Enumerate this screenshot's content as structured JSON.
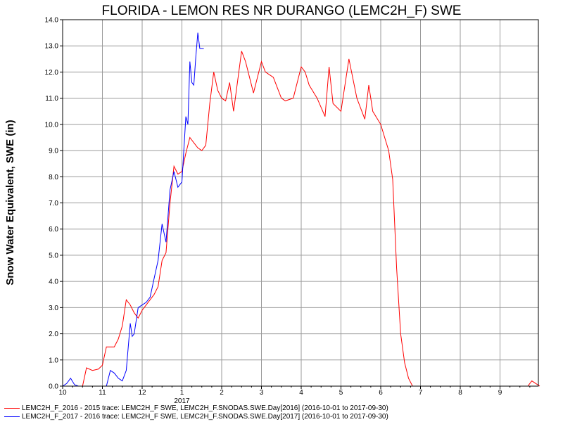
{
  "chart_data": {
    "type": "line",
    "title": "FLORIDA - LEMON RES NR DURANGO (LEMC2H_F) SWE",
    "ylabel": "Snow Water Equivalent, SWE (in)",
    "xlabel": "",
    "ylim": [
      0,
      14
    ],
    "y_ticks": [
      "0.0",
      "1.0",
      "2.0",
      "3.0",
      "4.0",
      "5.0",
      "6.0",
      "7.0",
      "8.0",
      "9.0",
      "10.0",
      "11.0",
      "12.0",
      "13.0",
      "14.0"
    ],
    "x_ticks": [
      {
        "label": "10",
        "month": 0
      },
      {
        "label": "11",
        "month": 1
      },
      {
        "label": "12",
        "month": 2
      },
      {
        "label": "1",
        "month": 3
      },
      {
        "label": "2",
        "month": 4
      },
      {
        "label": "3",
        "month": 5
      },
      {
        "label": "4",
        "month": 6
      },
      {
        "label": "5",
        "month": 7
      },
      {
        "label": "6",
        "month": 8
      },
      {
        "label": "7",
        "month": 9
      },
      {
        "label": "8",
        "month": 10
      },
      {
        "label": "9",
        "month": 11
      }
    ],
    "year_label": {
      "text": "2017",
      "month": 3
    },
    "grid": true,
    "series": [
      {
        "name": "LEMC2H_F_2016 - 2015 trace: LEMC2H_F SWE, LEMC2H_F.SNODAS.SWE.Day[2016] (2016-10-01 to 2017-09-30)",
        "color": "#ff0000",
        "x": [
          0.0,
          0.5,
          0.6,
          0.75,
          0.9,
          1.0,
          1.1,
          1.3,
          1.4,
          1.5,
          1.6,
          1.7,
          1.8,
          1.9,
          2.0,
          2.1,
          2.2,
          2.3,
          2.4,
          2.5,
          2.6,
          2.7,
          2.8,
          2.9,
          3.0,
          3.1,
          3.2,
          3.3,
          3.4,
          3.5,
          3.6,
          3.7,
          3.8,
          3.9,
          4.0,
          4.1,
          4.2,
          4.3,
          4.5,
          4.6,
          4.8,
          5.0,
          5.1,
          5.3,
          5.5,
          5.6,
          5.8,
          6.0,
          6.1,
          6.2,
          6.4,
          6.6,
          6.7,
          6.8,
          7.0,
          7.2,
          7.4,
          7.6,
          7.7,
          7.8,
          8.0,
          8.1,
          8.2,
          8.3,
          8.4,
          8.5,
          8.6,
          8.7,
          8.8,
          8.9,
          9.0,
          9.1,
          9.5,
          10.0,
          11.0,
          11.7,
          11.8,
          11.9,
          12.0
        ],
        "y": [
          0.0,
          0.0,
          0.7,
          0.6,
          0.65,
          0.8,
          1.5,
          1.5,
          1.8,
          2.3,
          3.3,
          3.1,
          2.8,
          2.6,
          2.9,
          3.1,
          3.3,
          3.5,
          3.8,
          4.8,
          5.1,
          7.0,
          8.4,
          8.1,
          8.2,
          8.9,
          9.5,
          9.3,
          9.1,
          9.0,
          9.2,
          10.8,
          12.0,
          11.3,
          11.0,
          10.9,
          11.6,
          10.5,
          12.8,
          12.4,
          11.2,
          12.4,
          12.0,
          11.8,
          11.0,
          10.9,
          11.0,
          12.2,
          12.0,
          11.5,
          11.0,
          10.3,
          12.2,
          10.8,
          10.5,
          12.5,
          11.0,
          10.2,
          11.5,
          10.5,
          10.0,
          9.5,
          9.0,
          7.9,
          4.5,
          2.0,
          0.9,
          0.3,
          0.0,
          0.0,
          0.0,
          0.0,
          0.0,
          0.0,
          0.0,
          0.0,
          0.2,
          0.1,
          0.0
        ]
      },
      {
        "name": "LEMC2H_F_2017 - 2016 trace: LEMC2H_F SWE, LEMC2H_F.SNODAS.SWE.Day[2017] (2016-10-01 to 2017-09-30)",
        "color": "#0000ff",
        "x": [
          0.0,
          0.1,
          0.2,
          0.3,
          0.4,
          0.5,
          1.0,
          1.1,
          1.2,
          1.3,
          1.4,
          1.5,
          1.6,
          1.7,
          1.75,
          1.8,
          1.9,
          2.0,
          2.1,
          2.2,
          2.3,
          2.4,
          2.5,
          2.6,
          2.7,
          2.8,
          2.9,
          3.0,
          3.1,
          3.15,
          3.2,
          3.25,
          3.3,
          3.35,
          3.4,
          3.45,
          3.5,
          3.55
        ],
        "y": [
          0.0,
          0.1,
          0.3,
          0.05,
          0.0,
          0.0,
          0.0,
          0.0,
          0.6,
          0.5,
          0.3,
          0.2,
          0.6,
          2.4,
          1.9,
          2.0,
          3.0,
          3.1,
          3.2,
          3.4,
          4.1,
          4.8,
          6.2,
          5.5,
          7.5,
          8.2,
          7.6,
          7.8,
          10.3,
          10.0,
          12.4,
          11.6,
          11.5,
          12.6,
          13.5,
          12.9,
          12.9,
          12.9
        ]
      }
    ]
  }
}
